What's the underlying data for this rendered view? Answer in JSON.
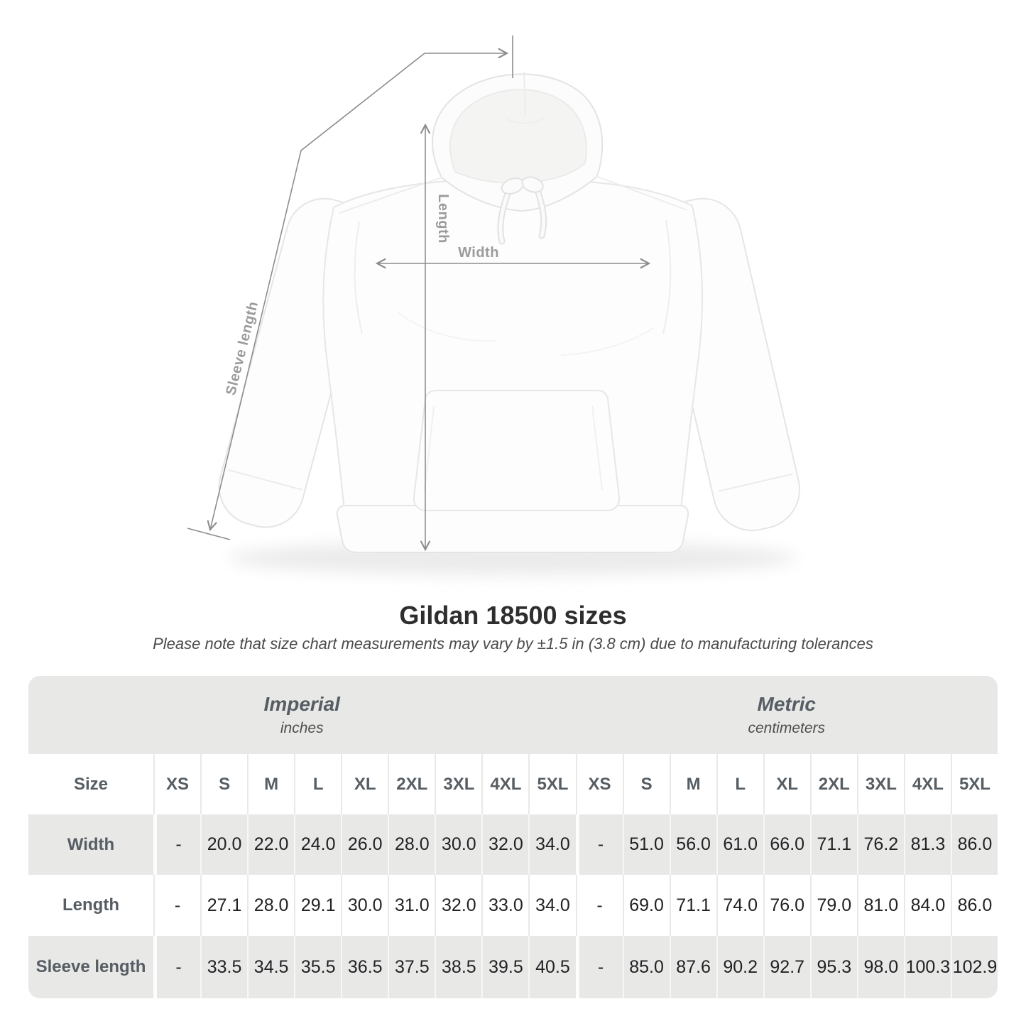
{
  "title": "Gildan 18500 sizes",
  "subtitle": "Please note that size chart measurements may vary by ±1.5 in (3.8 cm) due to manufacturing tolerances",
  "diagram": {
    "garment": "white pullover hoodie front view",
    "sleeve_length_label": "Sleeve length",
    "length_label": "Length",
    "width_label": "Width"
  },
  "table": {
    "sections": [
      {
        "label": "Imperial",
        "sublabel": "inches"
      },
      {
        "label": "Metric",
        "sublabel": "centimeters"
      }
    ],
    "size_header": "Size",
    "sizes": [
      "XS",
      "S",
      "M",
      "L",
      "XL",
      "2XL",
      "3XL",
      "4XL",
      "5XL"
    ],
    "rows": [
      {
        "label": "Width",
        "imperial": [
          "-",
          "20.0",
          "22.0",
          "24.0",
          "26.0",
          "28.0",
          "30.0",
          "32.0",
          "34.0"
        ],
        "metric": [
          "-",
          "51.0",
          "56.0",
          "61.0",
          "66.0",
          "71.1",
          "76.2",
          "81.3",
          "86.0"
        ]
      },
      {
        "label": "Length",
        "imperial": [
          "-",
          "27.1",
          "28.0",
          "29.1",
          "30.0",
          "31.0",
          "32.0",
          "33.0",
          "34.0"
        ],
        "metric": [
          "-",
          "69.0",
          "71.1",
          "74.0",
          "76.0",
          "79.0",
          "81.0",
          "84.0",
          "86.0"
        ]
      },
      {
        "label": "Sleeve length",
        "imperial": [
          "-",
          "33.5",
          "34.5",
          "35.5",
          "36.5",
          "37.5",
          "38.5",
          "39.5",
          "40.5"
        ],
        "metric": [
          "-",
          "85.0",
          "87.6",
          "90.2",
          "92.7",
          "95.3",
          "98.0",
          "100.3",
          "102.9"
        ]
      }
    ]
  },
  "colors": {
    "band_gray": "#e8e8e7",
    "header_text": "#565d63",
    "value_text": "#202224",
    "measure_line": "#8d8d8d",
    "measure_label": "#9b9b9c",
    "title_text": "#2e2e2e"
  }
}
